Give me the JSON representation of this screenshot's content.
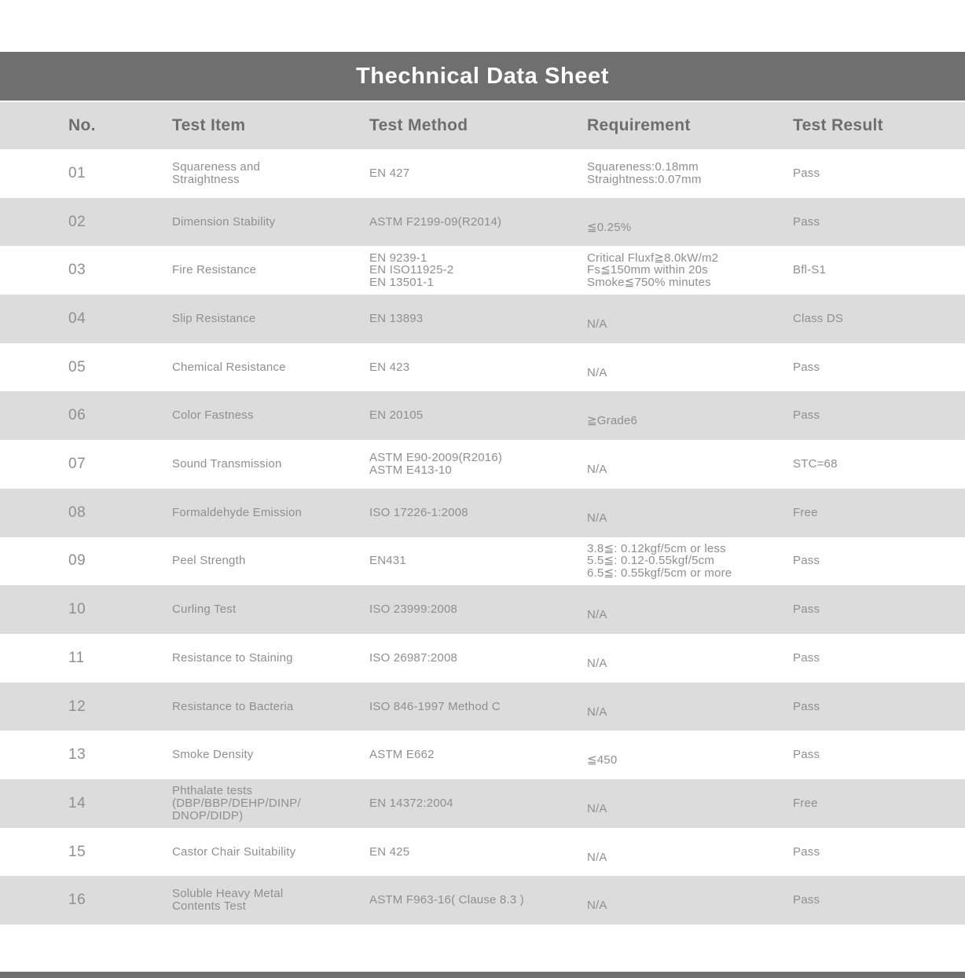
{
  "title": "Thechnical Data Sheet",
  "table": {
    "columns": [
      "No.",
      "Test Item",
      "Test Method",
      "Requirement",
      "Test Result"
    ],
    "rows": [
      {
        "no": "01",
        "item": [
          "Squareness and",
          "Straightness"
        ],
        "method": [
          "EN 427"
        ],
        "requirement": [
          "Squareness:0.18mm",
          "Straightness:0.07mm"
        ],
        "result": "Pass"
      },
      {
        "no": "02",
        "item": [
          "Dimension Stability"
        ],
        "method": [
          "ASTM F2199-09(R2014)"
        ],
        "requirement": [
          "≦0.25%"
        ],
        "result": "Pass"
      },
      {
        "no": "03",
        "item": [
          "Fire Resistance"
        ],
        "method": [
          "EN 9239-1",
          "EN ISO11925-2",
          "EN 13501-1"
        ],
        "requirement": [
          "Critical Fluxf≧8.0kW/m2",
          "Fs≦150mm within 20s",
          "Smoke≦750% minutes"
        ],
        "result": "Bfl-S1"
      },
      {
        "no": "04",
        "item": [
          "Slip Resistance"
        ],
        "method": [
          "EN 13893"
        ],
        "requirement": [
          "N/A"
        ],
        "result": "Class DS"
      },
      {
        "no": "05",
        "item": [
          "Chemical Resistance"
        ],
        "method": [
          "EN 423"
        ],
        "requirement": [
          "N/A"
        ],
        "result": "Pass"
      },
      {
        "no": "06",
        "item": [
          "Color Fastness"
        ],
        "method": [
          "EN 20105"
        ],
        "requirement": [
          "≧Grade6"
        ],
        "result": "Pass"
      },
      {
        "no": "07",
        "item": [
          "Sound Transmission"
        ],
        "method": [
          "ASTM E90-2009(R2016)",
          "ASTM E413-10"
        ],
        "requirement": [
          "N/A"
        ],
        "result": "STC=68"
      },
      {
        "no": "08",
        "item": [
          "Formaldehyde Emission"
        ],
        "method": [
          "ISO 17226-1:2008"
        ],
        "requirement": [
          "N/A"
        ],
        "result": "Free"
      },
      {
        "no": "09",
        "item": [
          "Peel Strength"
        ],
        "method": [
          "EN431"
        ],
        "requirement": [
          "3.8≦: 0.12kgf/5cm or less",
          "5.5≦: 0.12-0.55kgf/5cm",
          "6.5≦: 0.55kgf/5cm or more"
        ],
        "result": "Pass"
      },
      {
        "no": "10",
        "item": [
          "Curling Test"
        ],
        "method": [
          "ISO 23999:2008"
        ],
        "requirement": [
          "N/A"
        ],
        "result": "Pass"
      },
      {
        "no": "11",
        "item": [
          "Resistance to Staining"
        ],
        "method": [
          "ISO 26987:2008"
        ],
        "requirement": [
          "N/A"
        ],
        "result": "Pass"
      },
      {
        "no": "12",
        "item": [
          "Resistance to Bacteria"
        ],
        "method": [
          "ISO 846-1997 Method C"
        ],
        "requirement": [
          "N/A"
        ],
        "result": "Pass"
      },
      {
        "no": "13",
        "item": [
          "Smoke Density"
        ],
        "method": [
          "ASTM E662"
        ],
        "requirement": [
          "≦450"
        ],
        "result": "Pass"
      },
      {
        "no": "14",
        "item": [
          "Phthalate tests",
          "(DBP/BBP/DEHP/DINP/",
          "DNOP/DIDP)"
        ],
        "method": [
          "EN 14372:2004"
        ],
        "requirement": [
          "N/A"
        ],
        "result": "Free"
      },
      {
        "no": "15",
        "item": [
          "Castor Chair Suitability"
        ],
        "method": [
          "EN 425"
        ],
        "requirement": [
          "N/A"
        ],
        "result": "Pass"
      },
      {
        "no": "16",
        "item": [
          "Soluble Heavy Metal",
          "Contents Test"
        ],
        "method": [
          "ASTM F963-16( Clause 8.3 )"
        ],
        "requirement": [
          "N/A"
        ],
        "result": "Pass"
      }
    ]
  },
  "colors": {
    "title_bar": "#6f6f6f",
    "header_bg": "#dcdcdc",
    "row_alt": "#dcdcdc",
    "header_text": "#6e6e6e",
    "text": "#8f8f8f",
    "footer_bar": "#6f6f6f"
  }
}
